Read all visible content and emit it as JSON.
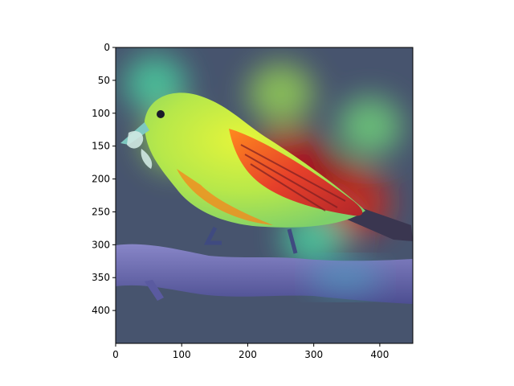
{
  "chart_data": {
    "type": "heatmap",
    "description_level": "image with jet-colormap saliency overlay",
    "x_ticks": [
      "0",
      "100",
      "200",
      "300",
      "400"
    ],
    "y_ticks": [
      "0",
      "50",
      "100",
      "150",
      "200",
      "250",
      "300",
      "350",
      "400"
    ],
    "xlim": [
      0,
      450
    ],
    "ylim": [
      450,
      0
    ],
    "colormap": "jet",
    "hotspots": [
      {
        "x": 310,
        "y": 210,
        "level": 1.0
      },
      {
        "x": 260,
        "y": 175,
        "level": 0.9
      },
      {
        "x": 360,
        "y": 235,
        "level": 0.85
      },
      {
        "x": 250,
        "y": 70,
        "level": 0.55
      },
      {
        "x": 385,
        "y": 120,
        "level": 0.5
      },
      {
        "x": 90,
        "y": 140,
        "level": 0.55
      },
      {
        "x": 60,
        "y": 55,
        "level": 0.45
      },
      {
        "x": 300,
        "y": 290,
        "level": 0.45
      }
    ],
    "grid": false
  },
  "colors": {
    "background": "#4a5670",
    "bird_body": "#d9f23a",
    "bird_wing": "#e8482a",
    "branch": "#6f6fb8",
    "axes": "#000000"
  }
}
